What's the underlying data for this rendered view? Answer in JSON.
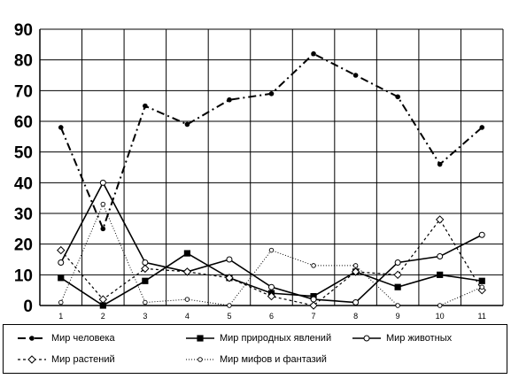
{
  "chart_data": {
    "type": "line",
    "categories": [
      "1",
      "2",
      "3",
      "4",
      "5",
      "6",
      "7",
      "8",
      "9",
      "10",
      "11"
    ],
    "ylim": [
      0,
      90
    ],
    "yticks": [
      "0",
      "10",
      "20",
      "30",
      "40",
      "50",
      "60",
      "70",
      "80",
      "90"
    ],
    "grid": true,
    "legend_placement": "bottom",
    "series": [
      {
        "name": "Мир человека",
        "values": [
          58,
          25,
          65,
          59,
          67,
          69,
          82,
          75,
          68,
          46,
          58
        ],
        "color": "#000000",
        "style": "dash-dot",
        "marker": "filled-circle"
      },
      {
        "name": "Мир природных явлений",
        "values": [
          9,
          0,
          8,
          17,
          9,
          4,
          3,
          11,
          6,
          10,
          8
        ],
        "color": "#000000",
        "style": "solid",
        "marker": "filled-square"
      },
      {
        "name": "Мир животных",
        "values": [
          14,
          40,
          14,
          11,
          15,
          6,
          2,
          1,
          14,
          16,
          23
        ],
        "color": "#000000",
        "style": "solid",
        "marker": "open-circle"
      },
      {
        "name": "Мир растений",
        "values": [
          18,
          2,
          12,
          11,
          9,
          3,
          0,
          11,
          10,
          28,
          5
        ],
        "color": "#000000",
        "style": "dotted",
        "marker": "open-diamond"
      },
      {
        "name": "Мир мифов и фантазий",
        "values": [
          1,
          33,
          1,
          2,
          0,
          18,
          13,
          13,
          0,
          0,
          6
        ],
        "color": "#000000",
        "style": "fine-dotted",
        "marker": "small-open-circle"
      }
    ]
  }
}
